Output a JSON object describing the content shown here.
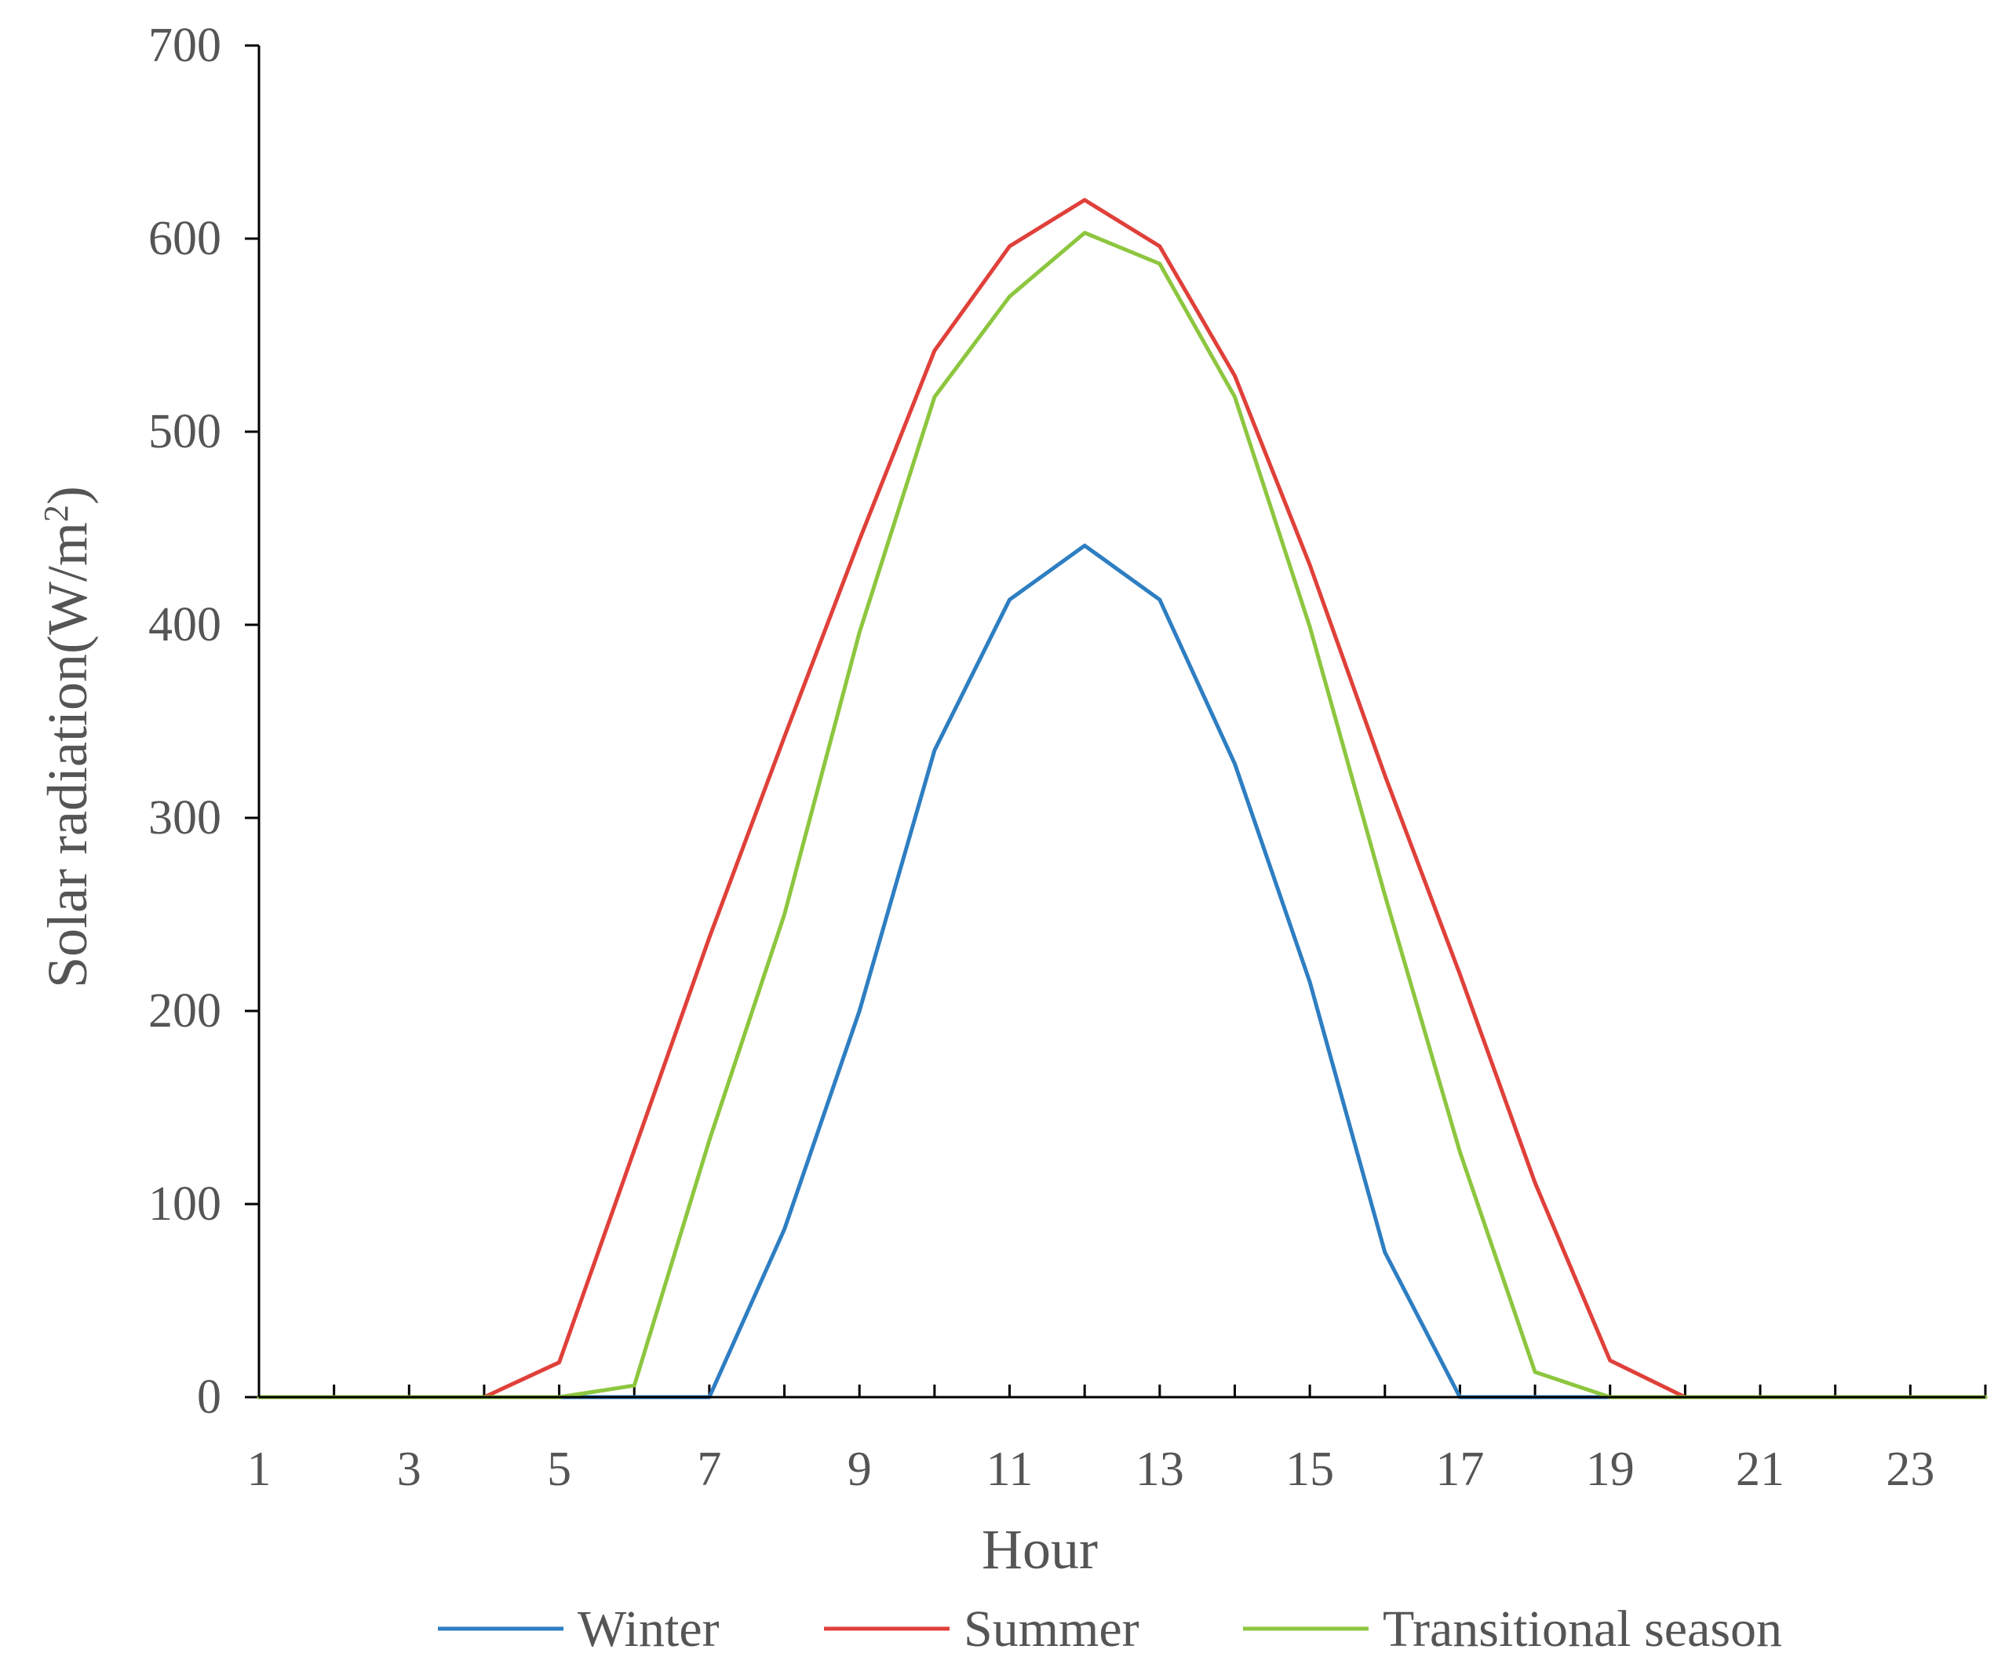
{
  "chart_data": {
    "type": "line",
    "title": "",
    "xlabel": "Hour",
    "ylabel": "Solar radiation(W/m",
    "ylabel_superscript": "2",
    "ylabel_close": ")",
    "ylim": [
      0,
      700
    ],
    "xlim": [
      1,
      24
    ],
    "yticks": [
      0,
      100,
      200,
      300,
      400,
      500,
      600,
      700
    ],
    "ytick_labels": [
      "0",
      "100",
      "200",
      "300",
      "400",
      "500",
      "600",
      "700"
    ],
    "xticks": [
      1,
      3,
      5,
      7,
      9,
      11,
      13,
      15,
      17,
      19,
      21,
      23
    ],
    "xtick_labels": [
      "1",
      "3",
      "5",
      "7",
      "9",
      "11",
      "13",
      "15",
      "17",
      "19",
      "21",
      "23"
    ],
    "grid": false,
    "legend_position": "bottom",
    "x": [
      1,
      2,
      3,
      4,
      5,
      6,
      7,
      8,
      9,
      10,
      11,
      12,
      13,
      14,
      15,
      16,
      17,
      18,
      19,
      20,
      21,
      22,
      23,
      24
    ],
    "series": [
      {
        "name": "Winter",
        "color": "#2e7ec2",
        "values": [
          0,
          0,
          0,
          0,
          0,
          0,
          0,
          87,
          200,
          335,
          413,
          441,
          413,
          328,
          215,
          75,
          0,
          0,
          0,
          0,
          0,
          0,
          0,
          0
        ]
      },
      {
        "name": "Summer",
        "color": "#e0403a",
        "values": [
          0,
          0,
          0,
          0,
          18,
          128,
          238,
          342,
          444,
          542,
          596,
          620,
          596,
          529,
          431,
          322,
          219,
          111,
          19,
          0,
          0,
          0,
          0,
          0
        ]
      },
      {
        "name": "Transitional season",
        "color": "#8dc63f",
        "values": [
          0,
          0,
          0,
          0,
          0,
          6,
          133,
          250,
          396,
          518,
          570,
          603,
          587,
          518,
          399,
          260,
          127,
          13,
          0,
          0,
          0,
          0,
          0,
          0
        ]
      }
    ]
  }
}
